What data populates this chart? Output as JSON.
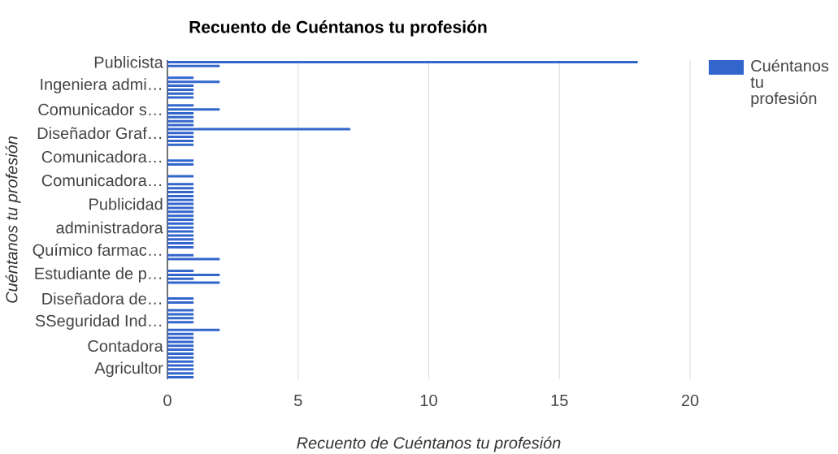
{
  "chart_data": {
    "type": "bar",
    "orientation": "horizontal",
    "title": "Recuento de Cuéntanos tu profesión",
    "xlabel": "Recuento de Cuéntanos tu profesión",
    "ylabel": "Cuéntanos tu profesión",
    "categories": [
      "Publicista",
      null,
      null,
      null,
      null,
      null,
      "Ingeniera admi…",
      null,
      null,
      null,
      null,
      null,
      "Comunicador s…",
      null,
      null,
      null,
      null,
      null,
      "Diseñador Graf…",
      null,
      null,
      null,
      null,
      null,
      "Comunicadora…",
      null,
      null,
      null,
      null,
      null,
      "Comunicadora…",
      null,
      null,
      null,
      null,
      null,
      "Publicidad",
      null,
      null,
      null,
      null,
      null,
      "administradora",
      null,
      null,
      null,
      null,
      null,
      "Químico farmac…",
      null,
      null,
      null,
      null,
      null,
      "Estudiante de p…",
      null,
      null,
      null,
      null,
      null,
      "Diseñadora de…",
      null,
      null,
      null,
      null,
      null,
      "SSeguridad Ind…",
      null,
      null,
      null,
      null,
      null,
      "Contadora",
      null,
      null,
      null,
      null,
      null,
      "Agricultor",
      null,
      null
    ],
    "series": [
      {
        "name": "Cuéntanos tu profesión",
        "color": "#3366cc",
        "values": [
          18,
          2,
          null,
          null,
          1,
          2,
          1,
          1,
          1,
          1,
          null,
          1,
          2,
          1,
          1,
          1,
          1,
          7,
          1,
          1,
          1,
          1,
          null,
          null,
          null,
          1,
          1,
          null,
          null,
          1,
          null,
          1,
          1,
          1,
          1,
          1,
          1,
          1,
          1,
          1,
          1,
          1,
          1,
          1,
          1,
          1,
          1,
          1,
          null,
          1,
          2,
          null,
          null,
          1,
          2,
          1,
          2,
          null,
          null,
          null,
          1,
          1,
          null,
          1,
          1,
          1,
          1,
          null,
          2,
          1,
          1,
          1,
          1,
          1,
          1,
          1,
          1,
          1,
          1,
          1,
          1
        ]
      }
    ],
    "xlim": [
      0,
      20
    ],
    "xticks": [
      0,
      5,
      10,
      15,
      20
    ],
    "grid": "x",
    "legend": "top right"
  }
}
